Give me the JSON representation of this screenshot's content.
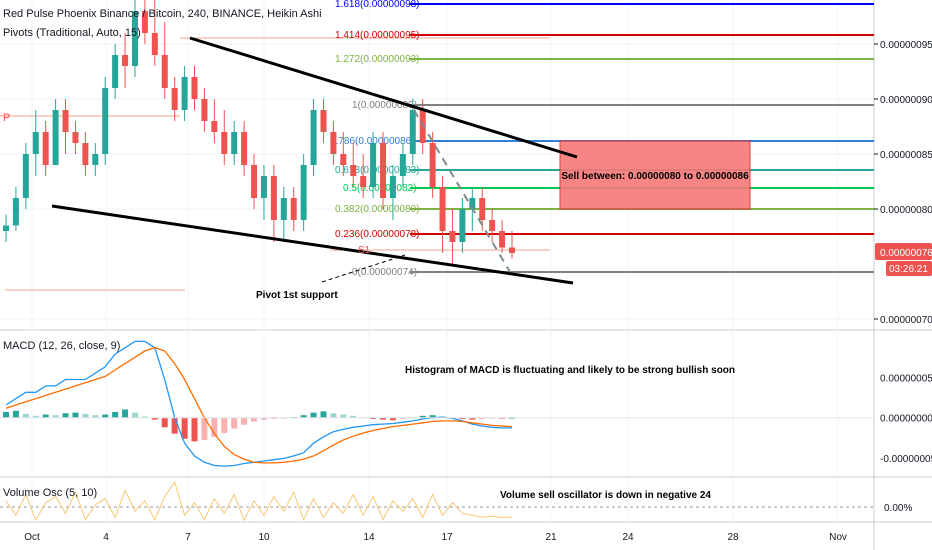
{
  "header": {
    "title": "Red Pulse Phoenix Binance / Bitcoin, 240, BINANCE, Heikin Ashi",
    "pivots_label": "Pivots (Traditional, Auto, 15)"
  },
  "price_axis": {
    "ticks": [
      "0.00000095",
      "0.00000090",
      "0.00000085",
      "0.00000080",
      "0.00000070"
    ],
    "current_price": "0.00000076",
    "countdown": "03:26:21",
    "current_color": "#ef5350"
  },
  "time_axis": {
    "ticks": [
      "Oct",
      "4",
      "7",
      "10",
      "14",
      "17",
      "21",
      "24",
      "28",
      "Nov"
    ]
  },
  "fib_levels": [
    {
      "label": "1.618(0.00000098)",
      "color": "#0000ff"
    },
    {
      "label": "1.414(0.00000095)",
      "color": "#d50000"
    },
    {
      "label": "1.272(0.00000093)",
      "color": "#7cb342"
    },
    {
      "label": "1(0.00000089)",
      "color": "#808080"
    },
    {
      "label": "0.786(0.00000086)",
      "color": "#2f7ed8"
    },
    {
      "label": "0.618(0.00000083)",
      "color": "#26a69a"
    },
    {
      "label": "0.5(0.00000082)",
      "color": "#00c853"
    },
    {
      "label": "0.382(0.00000080)",
      "color": "#7cb342"
    },
    {
      "label": "0.236(0.00000078)",
      "color": "#d50000"
    },
    {
      "label": "0(0.00000074)",
      "color": "#808080"
    }
  ],
  "annotations": {
    "sell_box": "Sell between: 0.00000080 to 0.00000086",
    "pivot_support": "Pivot 1st support",
    "pivot_s1": "S1",
    "pivot_p": "P",
    "macd_note": "Histogram of MACD is fluctuating and likely to be strong bullish soon",
    "vosc_note": "Volume sell oscillator is down in negative 24"
  },
  "macd": {
    "label": "MACD (12, 26, close, 9)",
    "ticks": [
      "0.00000005",
      "0.00000000",
      "-0.00000005"
    ]
  },
  "volume_osc": {
    "label": "Volume Osc (5, 10)",
    "tick": "0.00%"
  },
  "colors": {
    "up": "#26a69a",
    "down": "#ef5350",
    "macd_line": "#2196f3",
    "signal_line": "#ff6d00",
    "hist_up": "#26a69a",
    "hist_down": "#ef5350",
    "vosc_line": "#f7c873",
    "sell_box": "#f77878"
  },
  "chart_data": {
    "type": "candlestick",
    "title": "Red Pulse Phoenix Binance / Bitcoin, 240, BINANCE, Heikin Ashi",
    "price_range_btc": [
      6.9e-07,
      9.9e-07
    ],
    "candles_ohlc": [
      [
        7.8e-07,
        7.95e-07,
        7.7e-07,
        7.85e-07
      ],
      [
        7.85e-07,
        8.2e-07,
        7.8e-07,
        8.1e-07
      ],
      [
        8.1e-07,
        8.6e-07,
        8e-07,
        8.5e-07
      ],
      [
        8.5e-07,
        8.9e-07,
        8.3e-07,
        8.7e-07
      ],
      [
        8.7e-07,
        8.8e-07,
        8.3e-07,
        8.4e-07
      ],
      [
        8.4e-07,
        9e-07,
        8.4e-07,
        8.9e-07
      ],
      [
        8.9e-07,
        9e-07,
        8.5e-07,
        8.7e-07
      ],
      [
        8.7e-07,
        8.8e-07,
        8.5e-07,
        8.6e-07
      ],
      [
        8.6e-07,
        8.7e-07,
        8.3e-07,
        8.4e-07
      ],
      [
        8.4e-07,
        8.6e-07,
        8.3e-07,
        8.5e-07
      ],
      [
        8.5e-07,
        9.2e-07,
        8.4e-07,
        9.1e-07
      ],
      [
        9.1e-07,
        9.5e-07,
        9e-07,
        9.4e-07
      ],
      [
        9.4e-07,
        9.6e-07,
        9.1e-07,
        9.3e-07
      ],
      [
        9.3e-07,
        9.9e-07,
        9.2e-07,
        9.8e-07
      ],
      [
        9.8e-07,
        9.9e-07,
        9.5e-07,
        9.6e-07
      ],
      [
        9.6e-07,
        9.9e-07,
        9.3e-07,
        9.4e-07
      ],
      [
        9.4e-07,
        9.7e-07,
        9e-07,
        9.1e-07
      ],
      [
        9.1e-07,
        9.2e-07,
        8.8e-07,
        8.9e-07
      ],
      [
        8.9e-07,
        9.3e-07,
        8.8e-07,
        9.2e-07
      ],
      [
        9.2e-07,
        9.3e-07,
        8.9e-07,
        9e-07
      ],
      [
        9e-07,
        9.1e-07,
        8.7e-07,
        8.8e-07
      ],
      [
        8.8e-07,
        9e-07,
        8.6e-07,
        8.7e-07
      ],
      [
        8.7e-07,
        8.9e-07,
        8.4e-07,
        8.5e-07
      ],
      [
        8.5e-07,
        8.8e-07,
        8.4e-07,
        8.7e-07
      ],
      [
        8.7e-07,
        8.8e-07,
        8.3e-07,
        8.4e-07
      ],
      [
        8.4e-07,
        8.5e-07,
        8e-07,
        8.1e-07
      ],
      [
        8.1e-07,
        8.4e-07,
        7.9e-07,
        8.3e-07
      ],
      [
        8.3e-07,
        8.4e-07,
        7.7e-07,
        7.9e-07
      ],
      [
        7.9e-07,
        8.2e-07,
        7.7e-07,
        8.1e-07
      ],
      [
        8.1e-07,
        8.2e-07,
        7.8e-07,
        7.9e-07
      ],
      [
        7.9e-07,
        8.5e-07,
        7.8e-07,
        8.4e-07
      ],
      [
        8.4e-07,
        9e-07,
        8.3e-07,
        8.9e-07
      ],
      [
        8.9e-07,
        9e-07,
        8.6e-07,
        8.7e-07
      ],
      [
        8.7e-07,
        8.8e-07,
        8.4e-07,
        8.5e-07
      ],
      [
        8.5e-07,
        8.7e-07,
        8.3e-07,
        8.4e-07
      ],
      [
        8.4e-07,
        8.6e-07,
        8.2e-07,
        8.3e-07
      ],
      [
        8.3e-07,
        8.5e-07,
        8.1e-07,
        8.2e-07
      ],
      [
        8.2e-07,
        8.7e-07,
        8.1e-07,
        8.6e-07
      ],
      [
        8.6e-07,
        8.7e-07,
        8e-07,
        8.1e-07
      ],
      [
        8.1e-07,
        8.4e-07,
        7.9e-07,
        8.3e-07
      ],
      [
        8.3e-07,
        8.6e-07,
        8.2e-07,
        8.5e-07
      ],
      [
        8.5e-07,
        9e-07,
        8.4e-07,
        8.9e-07
      ],
      [
        8.9e-07,
        9e-07,
        8.5e-07,
        8.6e-07
      ],
      [
        8.6e-07,
        8.7e-07,
        8.1e-07,
        8.2e-07
      ],
      [
        8.2e-07,
        8.3e-07,
        7.6e-07,
        7.8e-07
      ],
      [
        7.8e-07,
        8e-07,
        7.5e-07,
        7.7e-07
      ],
      [
        7.7e-07,
        8.1e-07,
        7.6e-07,
        8e-07
      ],
      [
        8e-07,
        8.2e-07,
        7.8e-07,
        8.1e-07
      ],
      [
        8.1e-07,
        8.2e-07,
        7.8e-07,
        7.9e-07
      ],
      [
        7.9e-07,
        8e-07,
        7.7e-07,
        7.8e-07
      ],
      [
        7.8e-07,
        7.9e-07,
        7.6e-07,
        7.65e-07
      ],
      [
        7.65e-07,
        7.8e-07,
        7.55e-07,
        7.6e-07
      ]
    ],
    "macd_histogram": [
      0.9,
      1.1,
      0.6,
      0.3,
      0.5,
      0.4,
      0.7,
      0.8,
      0.6,
      0.4,
      0.5,
      0.9,
      1.3,
      0.8,
      0.2,
      -0.3,
      -1.5,
      -2.5,
      -3.3,
      -3.7,
      -3.5,
      -3.0,
      -2.4,
      -1.7,
      -1.1,
      -0.6,
      -0.3,
      -0.2,
      -0.1,
      0.1,
      0.4,
      0.8,
      1.0,
      0.7,
      0.5,
      0.3,
      0.1,
      -0.2,
      -0.3,
      -0.4,
      -0.2,
      0.1,
      0.3,
      0.4,
      0.2,
      0.0,
      -0.2,
      -0.3,
      -0.2,
      -0.1,
      -0.1,
      0.0
    ],
    "macd_line": [
      2,
      3,
      4,
      4,
      5,
      5,
      6,
      6,
      6,
      7,
      8,
      10,
      11,
      12,
      12,
      11,
      6,
      0,
      -4,
      -6,
      -7,
      -7.5,
      -7.6,
      -7.5,
      -7.2,
      -7,
      -6.8,
      -6.6,
      -6.4,
      -6,
      -5.5,
      -4,
      -3,
      -2.2,
      -1.8,
      -1.5,
      -1.3,
      -1.1,
      -1.0,
      -0.9,
      -0.7,
      -0.5,
      -0.2,
      0,
      0.1,
      -0.1,
      -0.5,
      -1.0,
      -1.3,
      -1.5,
      -1.6,
      -1.6
    ],
    "signal_line": [
      1.5,
      2,
      2.5,
      3,
      3.5,
      4,
      4.5,
      5,
      5.5,
      6,
      6.5,
      7.5,
      8.5,
      9.5,
      10.5,
      11,
      10.5,
      8.5,
      6,
      3,
      0,
      -2.5,
      -4.5,
      -5.8,
      -6.5,
      -7,
      -7.1,
      -7.1,
      -7,
      -6.8,
      -6.5,
      -6,
      -5.2,
      -4.3,
      -3.5,
      -2.9,
      -2.4,
      -2,
      -1.7,
      -1.4,
      -1.2,
      -1,
      -0.8,
      -0.6,
      -0.5,
      -0.5,
      -0.6,
      -0.8,
      -1.0,
      -1.2,
      -1.3,
      -1.4
    ],
    "volume_osc": [
      15,
      -20,
      30,
      -40,
      10,
      25,
      -15,
      35,
      -30,
      5,
      20,
      -25,
      40,
      -10,
      15,
      -35,
      25,
      60,
      -20,
      10,
      -30,
      20,
      -15,
      30,
      -40,
      15,
      -20,
      25,
      -10,
      35,
      -30,
      20,
      -25,
      10,
      -15,
      30,
      -20,
      25,
      -30,
      15,
      -10,
      20,
      -25,
      30,
      -20,
      10,
      -15,
      -20,
      -24,
      -22,
      -25,
      -24
    ]
  }
}
